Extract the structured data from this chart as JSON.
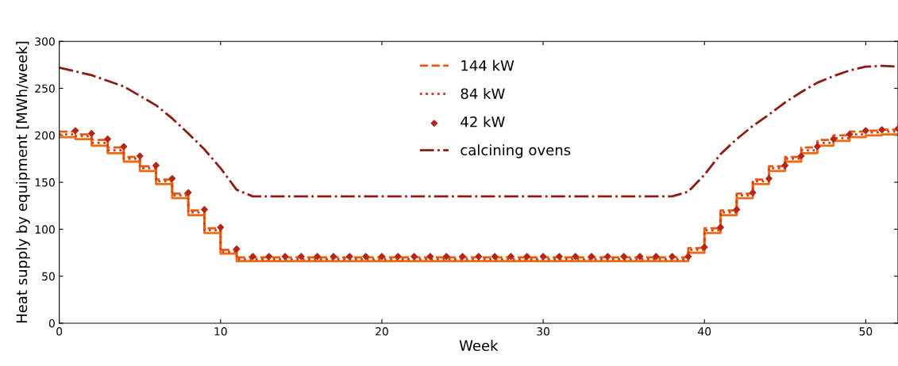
{
  "chart_data": {
    "type": "step",
    "xlabel": "Week",
    "ylabel": "Heat supply by equipment [MWh/week]",
    "x": [
      0,
      1,
      2,
      3,
      4,
      5,
      6,
      7,
      8,
      9,
      10,
      11,
      12,
      13,
      14,
      15,
      16,
      17,
      18,
      19,
      20,
      21,
      22,
      23,
      24,
      25,
      26,
      27,
      28,
      29,
      30,
      31,
      32,
      33,
      34,
      35,
      36,
      37,
      38,
      39,
      40,
      41,
      42,
      43,
      44,
      45,
      46,
      47,
      48,
      49,
      50,
      51,
      52
    ],
    "series": [
      {
        "color": "#f26a10",
        "line_style": "solid",
        "marker": "none",
        "values": [
          198,
          196,
          189,
          181,
          172,
          162,
          148,
          133,
          115,
          96,
          74,
          66,
          66,
          66,
          66,
          66,
          66,
          66,
          66,
          66,
          66,
          66,
          66,
          66,
          66,
          66,
          66,
          66,
          66,
          66,
          66,
          66,
          66,
          66,
          66,
          66,
          66,
          66,
          66,
          75,
          96,
          115,
          133,
          148,
          162,
          172,
          181,
          189,
          194,
          198,
          200,
          201,
          201
        ]
      },
      {
        "name": "144 kW",
        "color": "#e8590c",
        "line_style": "dashed",
        "marker": "none",
        "values": [
          204,
          201,
          195,
          187,
          177,
          167,
          153,
          138,
          120,
          101,
          78,
          70,
          70,
          70,
          70,
          70,
          70,
          70,
          70,
          70,
          70,
          70,
          70,
          70,
          70,
          70,
          70,
          70,
          70,
          70,
          70,
          70,
          70,
          70,
          70,
          70,
          70,
          70,
          70,
          80,
          101,
          120,
          138,
          153,
          167,
          177,
          187,
          195,
          200,
          204,
          205,
          206,
          206
        ]
      },
      {
        "name": "84 kW",
        "color": "#d0401a",
        "line_style": "dotted",
        "marker": "none",
        "values": [
          201,
          199,
          192,
          184,
          175,
          165,
          151,
          136,
          118,
          99,
          76,
          68,
          68,
          68,
          68,
          68,
          68,
          68,
          68,
          68,
          68,
          68,
          68,
          68,
          68,
          68,
          68,
          68,
          68,
          68,
          68,
          68,
          68,
          68,
          68,
          68,
          68,
          68,
          68,
          78,
          99,
          118,
          136,
          151,
          165,
          175,
          184,
          192,
          197,
          201,
          203,
          204,
          204
        ]
      },
      {
        "name": "42 kW",
        "type": "scatter",
        "color": "#b5261a",
        "marker": "diamond",
        "x": [
          1,
          2,
          3,
          4,
          5,
          6,
          7,
          8,
          9,
          10,
          11,
          12,
          13,
          14,
          15,
          16,
          17,
          18,
          19,
          20,
          21,
          22,
          23,
          24,
          25,
          26,
          27,
          28,
          29,
          30,
          31,
          32,
          33,
          34,
          35,
          36,
          37,
          38,
          39,
          40,
          41,
          42,
          43,
          44,
          45,
          46,
          47,
          48,
          49,
          50,
          51,
          52
        ],
        "values": [
          205,
          202,
          196,
          188,
          178,
          168,
          154,
          139,
          121,
          102,
          79,
          71,
          71,
          71,
          71,
          71,
          71,
          71,
          71,
          71,
          71,
          71,
          71,
          71,
          71,
          71,
          71,
          71,
          71,
          71,
          71,
          71,
          71,
          71,
          71,
          71,
          71,
          71,
          71,
          81,
          102,
          121,
          139,
          154,
          168,
          178,
          188,
          196,
          201,
          205,
          206,
          207
        ]
      },
      {
        "name": "calcining ovens",
        "type": "line",
        "color": "#8e1a12",
        "line_style": "dashdot",
        "marker": "none",
        "values": [
          272,
          268,
          264,
          258,
          252,
          242,
          232,
          218,
          202,
          185,
          165,
          142,
          135,
          135,
          135,
          135,
          135,
          135,
          135,
          135,
          135,
          135,
          135,
          135,
          135,
          135,
          135,
          135,
          135,
          135,
          135,
          135,
          135,
          135,
          135,
          135,
          135,
          135,
          135,
          140,
          158,
          180,
          196,
          210,
          222,
          235,
          246,
          256,
          263,
          269,
          273,
          274,
          273
        ]
      }
    ],
    "xlim": [
      0,
      52
    ],
    "ylim": [
      0,
      300
    ],
    "xticks": [
      0,
      10,
      20,
      30,
      40,
      50
    ],
    "yticks": [
      0,
      50,
      100,
      150,
      200,
      250,
      300
    ],
    "grid": false,
    "legend": "top"
  }
}
